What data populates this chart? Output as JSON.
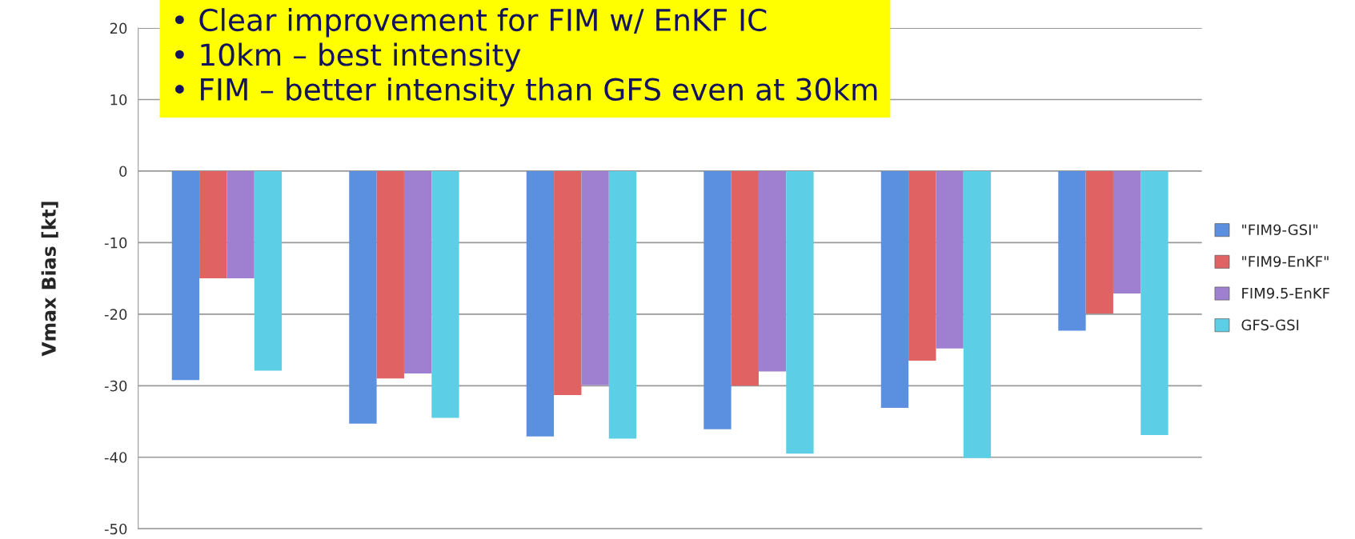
{
  "chart_data": {
    "type": "bar",
    "ylabel": "Vmax Bias [kt]",
    "categories": [
      null,
      null,
      null,
      null,
      null,
      null
    ],
    "series": [
      {
        "name": "\"FIM9-GSI\"",
        "color": "#5b8fe0",
        "values": [
          -29.2,
          -35.3,
          -37.1,
          -36.1,
          -33.1,
          -22.3
        ]
      },
      {
        "name": "\"FIM9-EnKF\"",
        "color": "#e06262",
        "values": [
          -15,
          -29,
          -31.3,
          -30,
          -26.5,
          -19.9
        ]
      },
      {
        "name": "FIM9.5-EnKF",
        "color": "#9f80d0",
        "values": [
          -15,
          -28.3,
          -29.9,
          -28,
          -24.8,
          -17.1
        ]
      },
      {
        "name": "GFS-GSI",
        "color": "#5ccfe6",
        "values": [
          -27.9,
          -34.5,
          -37.4,
          -39.5,
          -40.1,
          -36.9
        ]
      }
    ],
    "ylim": [
      -50,
      20
    ],
    "yticks": [
      -50,
      -40,
      -30,
      -20,
      -10,
      0,
      10,
      20
    ],
    "grid": "y",
    "legend": "right",
    "tick_labels": "y",
    "annotations": [
      "• Clear improvement for FIM w/ EnKF IC",
      "• 10km – best intensity",
      "• FIM – better intensity than GFS even at 30km"
    ]
  }
}
